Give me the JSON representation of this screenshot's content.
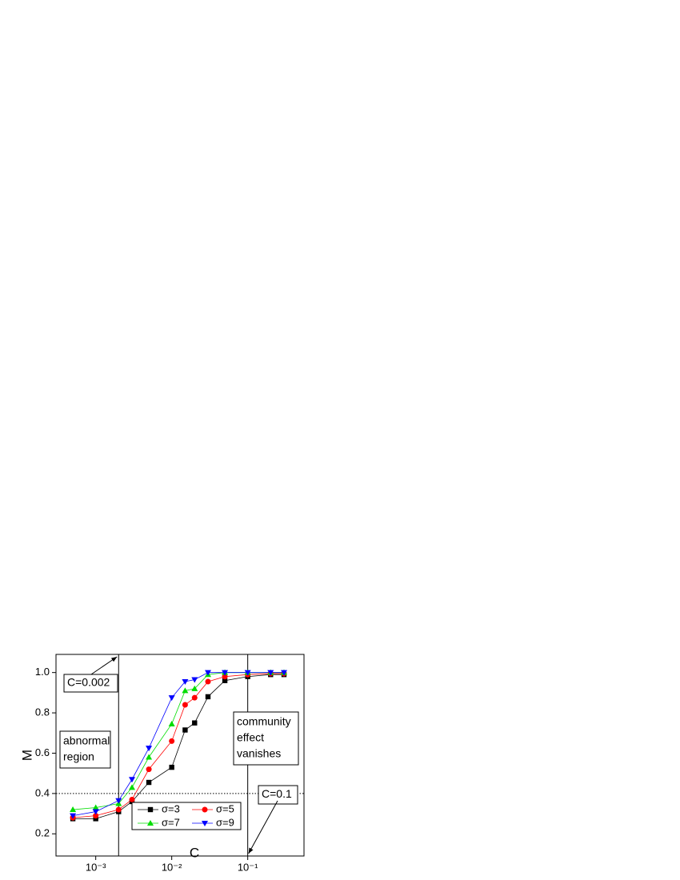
{
  "chart_data": {
    "type": "line",
    "x_label": "C",
    "y_label": "M",
    "x": [
      0.0005,
      0.001,
      0.002,
      0.003,
      0.005,
      0.01,
      0.015,
      0.02,
      0.03,
      0.05,
      0.1,
      0.2,
      0.3
    ],
    "series": [
      {
        "name": "σ=3",
        "color": "#000000",
        "marker": "square",
        "values": [
          0.275,
          0.275,
          0.31,
          0.36,
          0.455,
          0.53,
          0.715,
          0.75,
          0.88,
          0.96,
          0.98,
          0.99,
          0.99
        ]
      },
      {
        "name": "σ=5",
        "color": "#ff0000",
        "marker": "circle",
        "values": [
          0.28,
          0.29,
          0.32,
          0.37,
          0.52,
          0.66,
          0.84,
          0.875,
          0.955,
          0.98,
          0.99,
          0.995,
          0.995
        ]
      },
      {
        "name": "σ=7",
        "color": "#00dd00",
        "marker": "triangle-up",
        "values": [
          0.32,
          0.33,
          0.35,
          0.43,
          0.58,
          0.745,
          0.91,
          0.92,
          0.99,
          1.0,
          1.0,
          1.0,
          1.0
        ]
      },
      {
        "name": "σ=9",
        "color": "#0000ff",
        "marker": "triangle-down",
        "values": [
          0.29,
          0.31,
          0.365,
          0.47,
          0.625,
          0.875,
          0.955,
          0.965,
          1.0,
          1.0,
          1.0,
          1.0,
          1.0
        ]
      }
    ],
    "xlim": [
      0.0003,
      0.55
    ],
    "xscale": "log",
    "xticks": [
      {
        "value": 0.001,
        "label": "10⁻³"
      },
      {
        "value": 0.01,
        "label": "10⁻²"
      },
      {
        "value": 0.1,
        "label": "10⁻¹"
      }
    ],
    "ylim": [
      0.09,
      1.09
    ],
    "yticks": [
      {
        "value": 0.2,
        "label": "0.2"
      },
      {
        "value": 0.4,
        "label": "0.4"
      },
      {
        "value": 0.6,
        "label": "0.6"
      },
      {
        "value": 0.8,
        "label": "0.8"
      },
      {
        "value": 1.0,
        "label": "1.0"
      }
    ],
    "vlines": [
      0.002,
      0.1
    ],
    "hline": 0.4,
    "legend": "lower center",
    "annotations": [
      {
        "lines": [
          "C=0.002"
        ]
      },
      {
        "lines": [
          "C=0.1"
        ]
      },
      {
        "lines": [
          "abnormal",
          "region"
        ]
      },
      {
        "lines": [
          "community",
          "effect",
          "vanishes"
        ]
      }
    ]
  }
}
